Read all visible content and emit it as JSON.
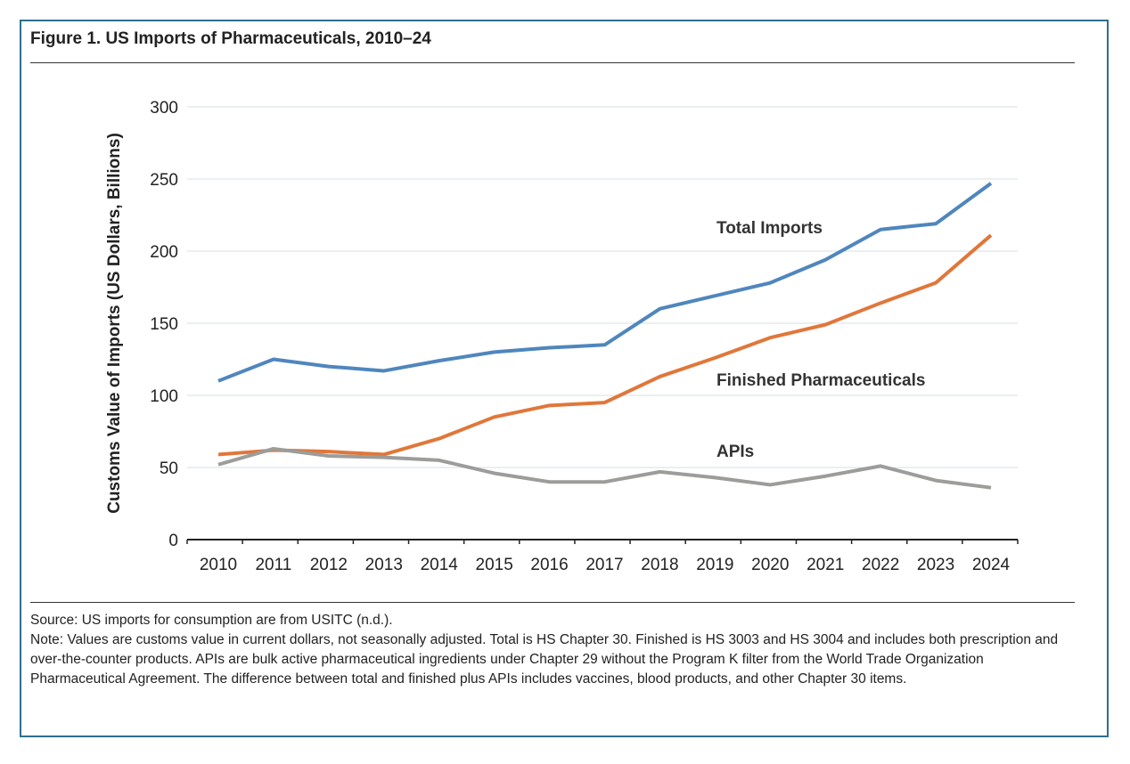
{
  "chart_data": {
    "type": "line",
    "title": "Figure 1. US Imports of Pharmaceuticals, 2010–24",
    "xlabel": "",
    "ylabel": "Customs Value of Imports (US Dollars, Billions)",
    "ylim": [
      0,
      300
    ],
    "yticks": [
      "0",
      "50",
      "100",
      "150",
      "200",
      "250",
      "300"
    ],
    "x": [
      "2010",
      "2011",
      "2012",
      "2013",
      "2014",
      "2015",
      "2016",
      "2017",
      "2018",
      "2019",
      "2020",
      "2021",
      "2022",
      "2023",
      "2024"
    ],
    "grid": true,
    "series": [
      {
        "name": "Total Imports",
        "color": "#4f86bd",
        "values": [
          110,
          125,
          120,
          117,
          124,
          130,
          133,
          135,
          160,
          169,
          178,
          194,
          215,
          219,
          247
        ]
      },
      {
        "name": "Finished Pharmaceuticals",
        "color": "#e0773a",
        "values": [
          59,
          62,
          61,
          59,
          70,
          85,
          93,
          95,
          113,
          126,
          140,
          149,
          164,
          178,
          211
        ]
      },
      {
        "name": "APIs",
        "color": "#9c9c9a",
        "values": [
          52,
          63,
          58,
          57,
          55,
          46,
          40,
          40,
          47,
          43,
          38,
          44,
          51,
          41,
          36
        ]
      }
    ]
  },
  "notes": {
    "source": "Source: US imports for consumption are from USITC (n.d.).",
    "note": "Note: Values are customs value in current dollars, not seasonally adjusted. Total is HS Chapter 30. Finished is HS 3003 and HS 3004 and includes both prescription and over-the-counter products. APIs are bulk active pharmaceutical ingredients under Chapter 29 without the Program K filter from the World Trade Organization Pharmaceutical Agreement. The difference between total and finished plus APIs includes vaccines, blood products, and other Chapter 30 items."
  }
}
